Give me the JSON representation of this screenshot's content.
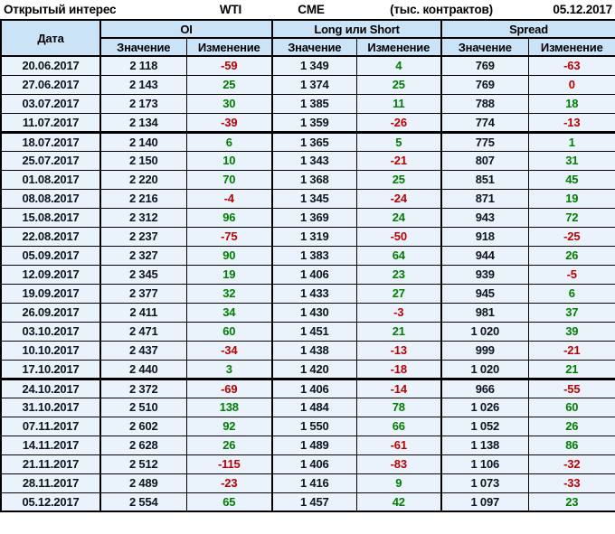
{
  "header": {
    "title": "Открытый интерес",
    "instrument": "WTI",
    "exchange": "CME",
    "units": "(тыс. контрактов)",
    "report_date": "05.12.2017"
  },
  "table": {
    "date_label": "Дата",
    "groups": [
      {
        "label": "OI"
      },
      {
        "label": "Long или Short"
      },
      {
        "label": "Spread"
      }
    ],
    "value_label": "Значение",
    "change_label": "Изменение",
    "thick_separator_after_rows": [
      4,
      17
    ],
    "rows": [
      [
        "20.06.2017",
        "2 118",
        "-59",
        "1 349",
        "4",
        "769",
        "-63"
      ],
      [
        "27.06.2017",
        "2 143",
        "25",
        "1 374",
        "25",
        "769",
        "0"
      ],
      [
        "03.07.2017",
        "2 173",
        "30",
        "1 385",
        "11",
        "788",
        "18"
      ],
      [
        "11.07.2017",
        "2 134",
        "-39",
        "1 359",
        "-26",
        "774",
        "-13"
      ],
      [
        "18.07.2017",
        "2 140",
        "6",
        "1 365",
        "5",
        "775",
        "1"
      ],
      [
        "25.07.2017",
        "2 150",
        "10",
        "1 343",
        "-21",
        "807",
        "31"
      ],
      [
        "01.08.2017",
        "2 220",
        "70",
        "1 368",
        "25",
        "851",
        "45"
      ],
      [
        "08.08.2017",
        "2 216",
        "-4",
        "1 345",
        "-24",
        "871",
        "19"
      ],
      [
        "15.08.2017",
        "2 312",
        "96",
        "1 369",
        "24",
        "943",
        "72"
      ],
      [
        "22.08.2017",
        "2 237",
        "-75",
        "1 319",
        "-50",
        "918",
        "-25"
      ],
      [
        "05.09.2017",
        "2 327",
        "90",
        "1 383",
        "64",
        "944",
        "26"
      ],
      [
        "12.09.2017",
        "2 345",
        "19",
        "1 406",
        "23",
        "939",
        "-5"
      ],
      [
        "19.09.2017",
        "2 377",
        "32",
        "1 433",
        "27",
        "945",
        "6"
      ],
      [
        "26.09.2017",
        "2 411",
        "34",
        "1 430",
        "-3",
        "981",
        "37"
      ],
      [
        "03.10.2017",
        "2 471",
        "60",
        "1 451",
        "21",
        "1 020",
        "39"
      ],
      [
        "10.10.2017",
        "2 437",
        "-34",
        "1 438",
        "-13",
        "999",
        "-21"
      ],
      [
        "17.10.2017",
        "2 440",
        "3",
        "1 420",
        "-18",
        "1 020",
        "21"
      ],
      [
        "24.10.2017",
        "2 372",
        "-69",
        "1 406",
        "-14",
        "966",
        "-55"
      ],
      [
        "31.10.2017",
        "2 510",
        "138",
        "1 484",
        "78",
        "1 026",
        "60"
      ],
      [
        "07.11.2017",
        "2 602",
        "92",
        "1 550",
        "66",
        "1 052",
        "26"
      ],
      [
        "14.11.2017",
        "2 628",
        "26",
        "1 489",
        "-61",
        "1 138",
        "86"
      ],
      [
        "21.11.2017",
        "2 512",
        "-115",
        "1 406",
        "-83",
        "1 106",
        "-32"
      ],
      [
        "28.11.2017",
        "2 489",
        "-23",
        "1 416",
        "9",
        "1 073",
        "-33"
      ],
      [
        "05.12.2017",
        "2 554",
        "65",
        "1 457",
        "42",
        "1 097",
        "23"
      ]
    ]
  },
  "colors": {
    "positive_change": "#008000",
    "negative_change": "#c00000",
    "header_background": "#cbe3f7",
    "row_background": "#eaf3fb",
    "value_text": "#0d1423",
    "border": "#000000"
  }
}
